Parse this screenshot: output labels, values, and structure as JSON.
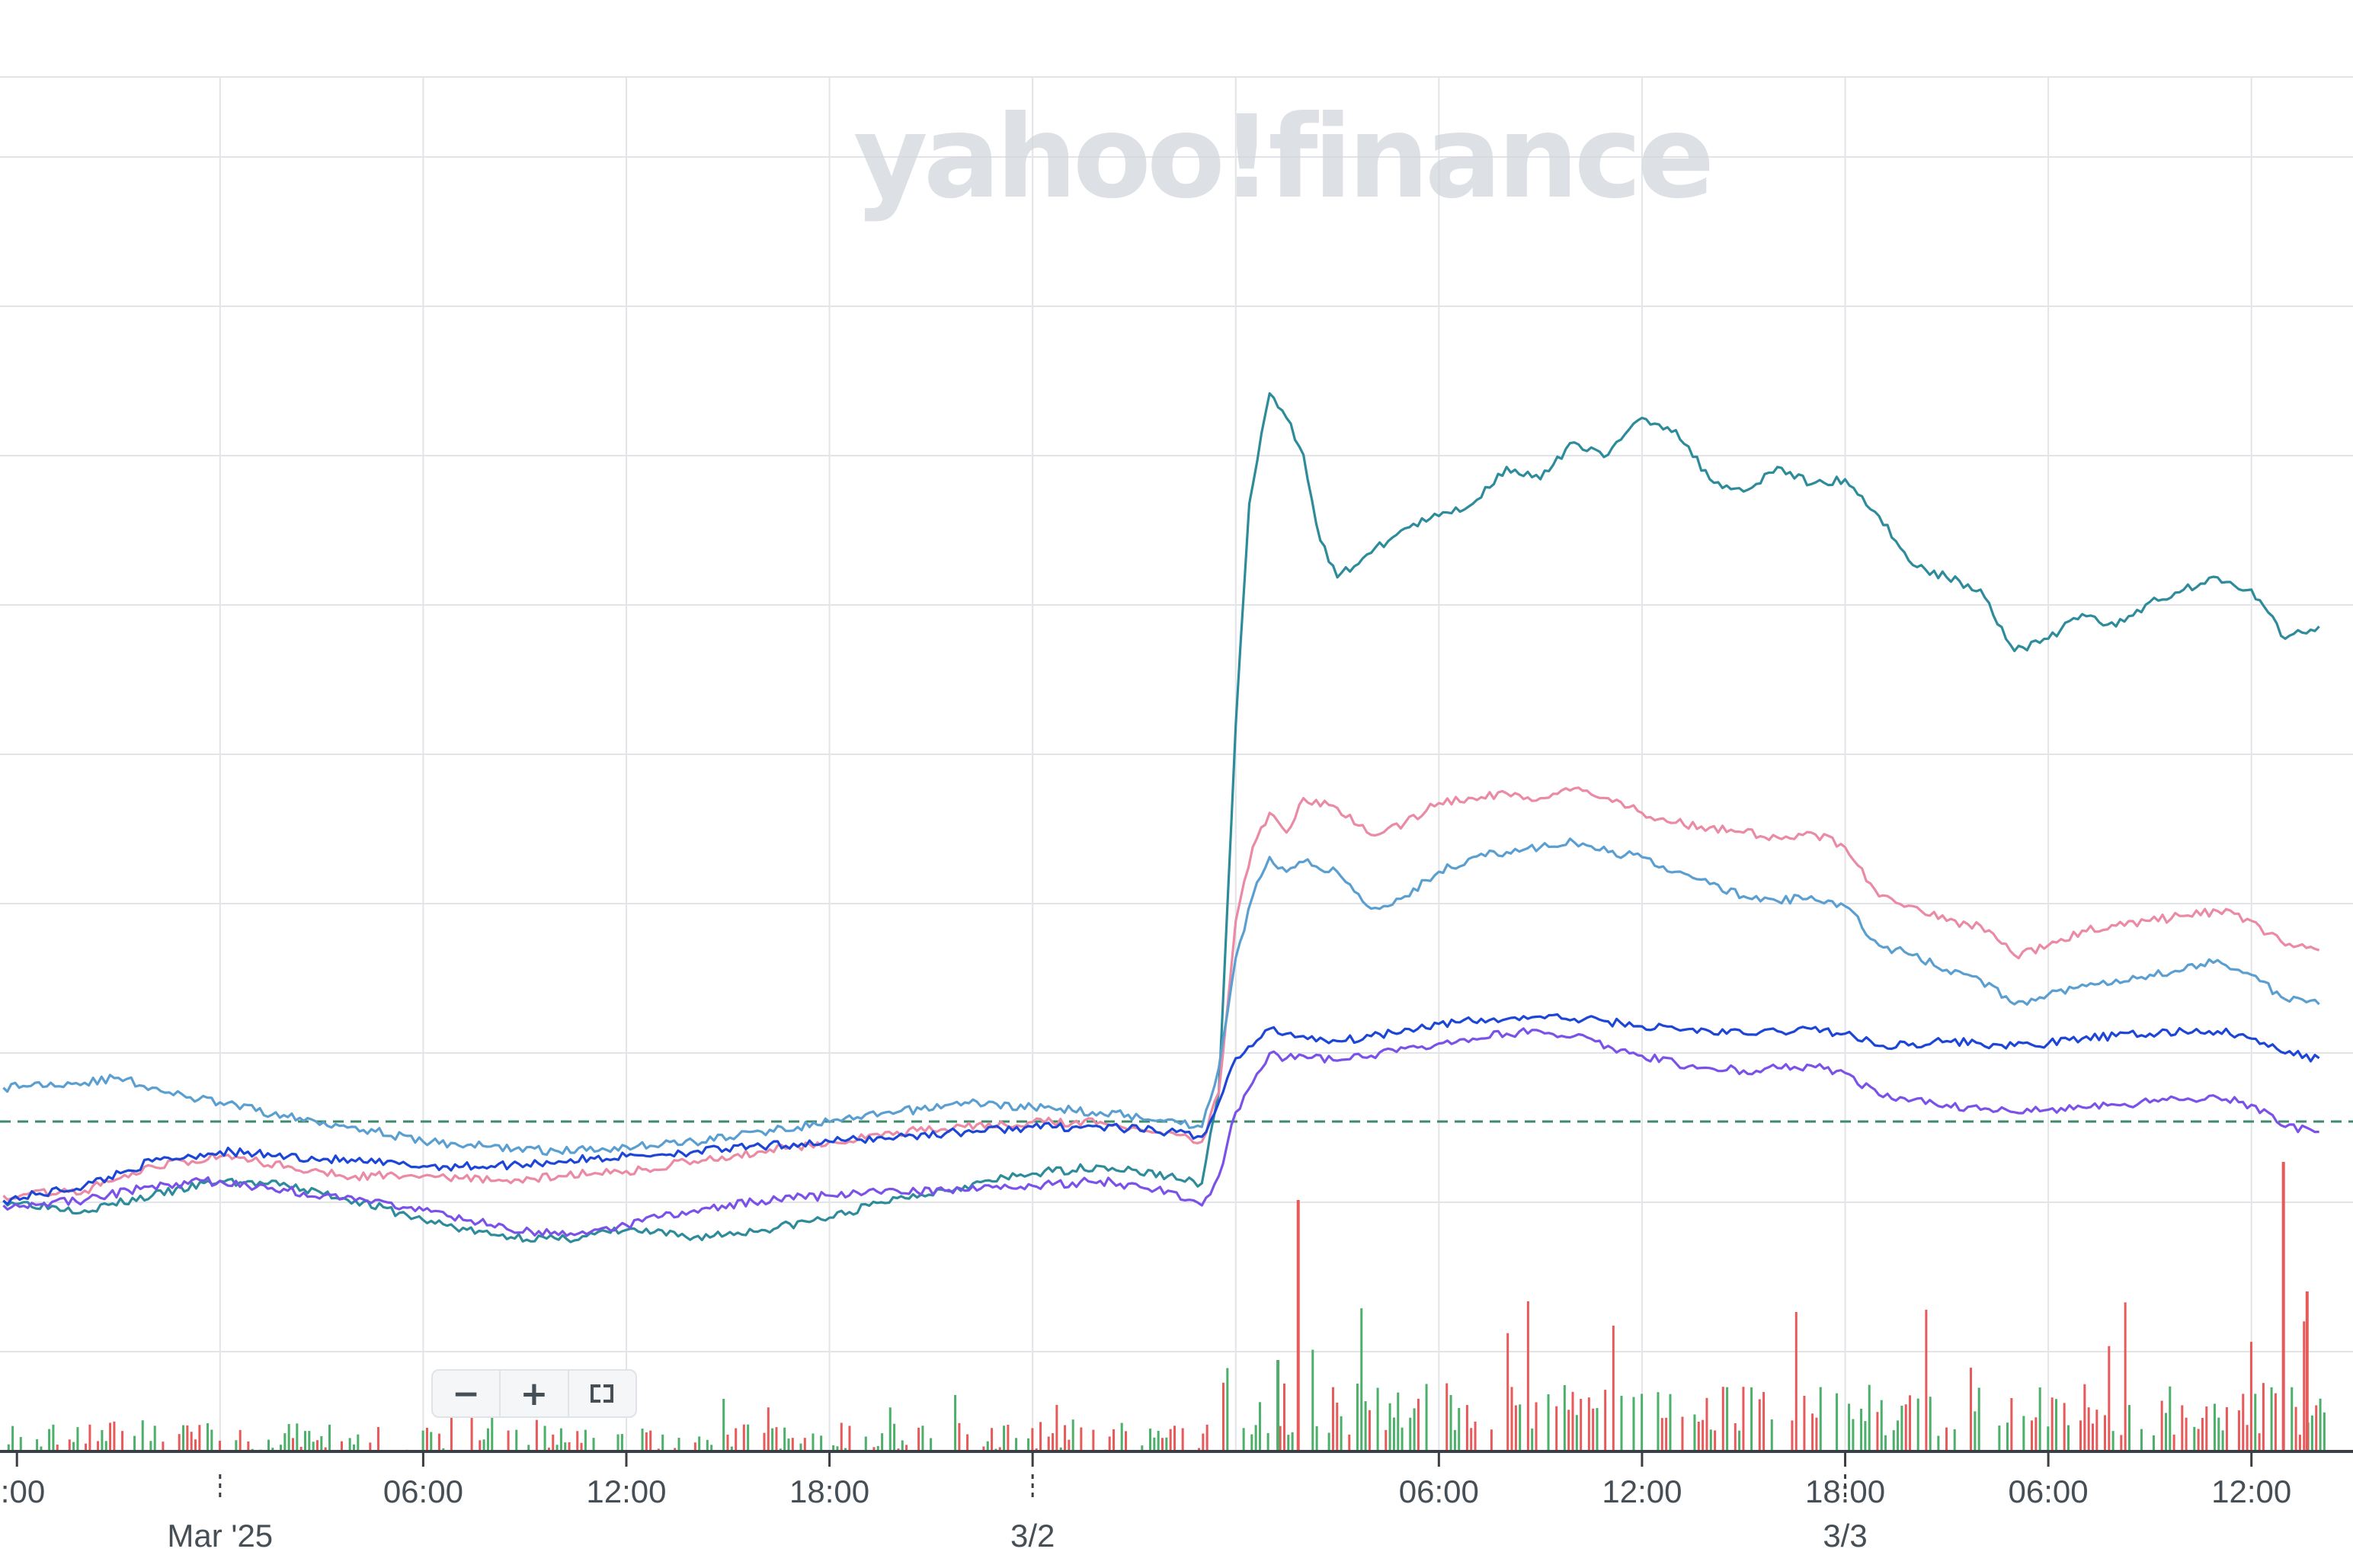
{
  "watermark": "yahoo!finance",
  "zoom_controls": {
    "zoom_out_label": "−",
    "zoom_in_label": "+",
    "fullscreen_icon": "fullscreen-icon"
  },
  "chart_data": {
    "type": "line",
    "title": "",
    "xlabel": "",
    "ylabel": "",
    "x_start": "2025-02-28 18:00",
    "x_end": "2025-03-03 12:00",
    "time_tick_labels": [
      ":00",
      "06:00",
      "12:00",
      "18:00",
      "06:00",
      "12:00",
      "18:00",
      "06:00",
      "12:00"
    ],
    "date_labels": [
      "Mar '25",
      "3/2",
      "3/3"
    ],
    "grid": true,
    "legend": "none",
    "y_axis_labels": "not shown",
    "baseline_reference": "dashed horizontal line",
    "colors": {
      "teal": "#2e8b9a",
      "pink": "#ea8aa5",
      "light_blue": "#5b9fd1",
      "blue": "#1d46d6",
      "purple": "#7b52e8",
      "baseline": "#3e8a6a",
      "volume_up": "#4caf6a",
      "volume_down": "#e85a5a"
    },
    "series": [
      {
        "color": "teal",
        "values": [
          [
            -0.4,
            0.6
          ],
          [
            2,
            0.2
          ],
          [
            4,
            0.8
          ],
          [
            6,
            1.4
          ],
          [
            8,
            1.2
          ],
          [
            10,
            0.6
          ],
          [
            12,
            -0.2
          ],
          [
            14,
            -0.8
          ],
          [
            16,
            -1.0
          ],
          [
            18,
            -0.6
          ],
          [
            20,
            -0.9
          ],
          [
            22,
            -0.6
          ],
          [
            24,
            -0.1
          ],
          [
            26,
            0.7
          ],
          [
            28,
            1.2
          ],
          [
            30,
            1.7
          ],
          [
            32,
            2.0
          ],
          [
            34,
            1.6
          ],
          [
            35,
            1.3
          ],
          [
            35.5,
            5.0
          ],
          [
            36,
            20.0
          ],
          [
            36.4,
            29.0
          ],
          [
            37,
            33.5
          ],
          [
            37.5,
            32.5
          ],
          [
            38,
            31.0
          ],
          [
            38.5,
            27.5
          ],
          [
            39,
            26.0
          ],
          [
            40,
            27.0
          ],
          [
            41,
            28.0
          ],
          [
            42,
            28.5
          ],
          [
            43,
            29.0
          ],
          [
            44,
            30.5
          ],
          [
            45,
            30.0
          ],
          [
            46,
            31.5
          ],
          [
            47,
            31.0
          ],
          [
            48,
            32.5
          ],
          [
            49,
            32.0
          ],
          [
            50,
            30.0
          ],
          [
            51,
            29.5
          ],
          [
            52,
            30.5
          ],
          [
            53,
            29.8
          ],
          [
            54,
            30.0
          ],
          [
            55,
            28.5
          ],
          [
            56,
            26.5
          ],
          [
            57,
            26.0
          ],
          [
            58,
            25.5
          ],
          [
            59,
            23.0
          ],
          [
            60,
            23.5
          ],
          [
            61,
            24.5
          ],
          [
            62,
            24.0
          ],
          [
            63,
            25.0
          ],
          [
            64,
            25.5
          ],
          [
            65,
            26.0
          ],
          [
            66,
            25.5
          ],
          [
            67,
            23.5
          ],
          [
            68,
            24.0
          ]
        ]
      },
      {
        "color": "pink",
        "values": [
          [
            -0.4,
            0.8
          ],
          [
            2,
            1.0
          ],
          [
            4,
            2.0
          ],
          [
            6,
            2.4
          ],
          [
            8,
            2.0
          ],
          [
            10,
            1.6
          ],
          [
            12,
            1.6
          ],
          [
            14,
            1.4
          ],
          [
            16,
            1.6
          ],
          [
            18,
            1.8
          ],
          [
            20,
            2.2
          ],
          [
            22,
            2.6
          ],
          [
            24,
            3.0
          ],
          [
            26,
            3.4
          ],
          [
            28,
            3.6
          ],
          [
            30,
            3.8
          ],
          [
            32,
            3.8
          ],
          [
            34,
            3.4
          ],
          [
            35,
            3.0
          ],
          [
            35.5,
            5.0
          ],
          [
            36,
            12.0
          ],
          [
            36.5,
            15.0
          ],
          [
            37,
            16.4
          ],
          [
            37.5,
            15.6
          ],
          [
            38,
            17.0
          ],
          [
            39,
            16.6
          ],
          [
            40,
            15.5
          ],
          [
            41,
            16.0
          ],
          [
            42,
            16.8
          ],
          [
            43,
            17.0
          ],
          [
            44,
            17.2
          ],
          [
            45,
            17.0
          ],
          [
            46,
            17.4
          ],
          [
            47,
            17.0
          ],
          [
            48,
            16.4
          ],
          [
            49,
            16.0
          ],
          [
            50,
            15.8
          ],
          [
            51,
            15.6
          ],
          [
            52,
            15.4
          ],
          [
            53,
            15.6
          ],
          [
            54,
            15.0
          ],
          [
            55,
            13.0
          ],
          [
            56,
            12.6
          ],
          [
            57,
            12.0
          ],
          [
            58,
            11.8
          ],
          [
            59,
            10.6
          ],
          [
            60,
            11.0
          ],
          [
            61,
            11.6
          ],
          [
            62,
            11.8
          ],
          [
            63,
            12.0
          ],
          [
            64,
            12.2
          ],
          [
            65,
            12.4
          ],
          [
            66,
            12.0
          ],
          [
            67,
            11.0
          ],
          [
            68,
            10.8
          ]
        ]
      },
      {
        "color": "light_blue",
        "values": [
          [
            -0.4,
            5.2
          ],
          [
            1,
            5.4
          ],
          [
            2,
            5.4
          ],
          [
            3,
            5.6
          ],
          [
            4,
            5.2
          ],
          [
            5,
            4.8
          ],
          [
            6,
            4.6
          ],
          [
            8,
            4.0
          ],
          [
            10,
            3.6
          ],
          [
            12,
            3.0
          ],
          [
            14,
            2.8
          ],
          [
            16,
            2.6
          ],
          [
            18,
            2.8
          ],
          [
            20,
            3.0
          ],
          [
            22,
            3.4
          ],
          [
            24,
            3.8
          ],
          [
            26,
            4.2
          ],
          [
            28,
            4.6
          ],
          [
            30,
            4.4
          ],
          [
            32,
            4.2
          ],
          [
            34,
            3.9
          ],
          [
            35,
            3.6
          ],
          [
            35.5,
            6.0
          ],
          [
            36,
            10.5
          ],
          [
            36.5,
            13.0
          ],
          [
            37,
            14.6
          ],
          [
            37.5,
            14.0
          ],
          [
            38,
            14.4
          ],
          [
            39,
            14.0
          ],
          [
            40,
            12.5
          ],
          [
            41,
            13.0
          ],
          [
            42,
            14.0
          ],
          [
            43,
            14.6
          ],
          [
            44,
            14.8
          ],
          [
            45,
            15.0
          ],
          [
            46,
            15.2
          ],
          [
            47,
            14.8
          ],
          [
            48,
            14.6
          ],
          [
            49,
            14.0
          ],
          [
            50,
            13.5
          ],
          [
            51,
            13.0
          ],
          [
            52,
            12.8
          ],
          [
            53,
            13.0
          ],
          [
            54,
            12.6
          ],
          [
            55,
            11.0
          ],
          [
            56,
            10.6
          ],
          [
            57,
            10.0
          ],
          [
            58,
            9.6
          ],
          [
            59,
            8.6
          ],
          [
            60,
            9.0
          ],
          [
            61,
            9.4
          ],
          [
            62,
            9.6
          ],
          [
            63,
            9.8
          ],
          [
            64,
            10.0
          ],
          [
            65,
            10.4
          ],
          [
            66,
            9.8
          ],
          [
            67,
            8.8
          ],
          [
            68,
            8.6
          ]
        ]
      },
      {
        "color": "blue",
        "values": [
          [
            -0.4,
            0.6
          ],
          [
            2,
            1.2
          ],
          [
            4,
            2.2
          ],
          [
            6,
            2.6
          ],
          [
            8,
            2.4
          ],
          [
            10,
            2.2
          ],
          [
            12,
            2.0
          ],
          [
            14,
            2.0
          ],
          [
            16,
            2.2
          ],
          [
            18,
            2.4
          ],
          [
            20,
            2.6
          ],
          [
            22,
            2.8
          ],
          [
            24,
            3.0
          ],
          [
            26,
            3.2
          ],
          [
            28,
            3.4
          ],
          [
            30,
            3.6
          ],
          [
            32,
            3.6
          ],
          [
            34,
            3.4
          ],
          [
            35,
            3.2
          ],
          [
            35.5,
            4.6
          ],
          [
            36,
            6.4
          ],
          [
            36.5,
            6.9
          ],
          [
            37,
            7.6
          ],
          [
            37.5,
            7.4
          ],
          [
            38,
            7.3
          ],
          [
            39,
            7.1
          ],
          [
            40,
            7.3
          ],
          [
            41,
            7.6
          ],
          [
            42,
            7.8
          ],
          [
            43,
            7.9
          ],
          [
            44,
            8.0
          ],
          [
            45,
            8.1
          ],
          [
            46,
            8.0
          ],
          [
            47,
            7.9
          ],
          [
            48,
            7.7
          ],
          [
            49,
            7.6
          ],
          [
            50,
            7.5
          ],
          [
            51,
            7.4
          ],
          [
            52,
            7.5
          ],
          [
            53,
            7.6
          ],
          [
            54,
            7.4
          ],
          [
            55,
            6.9
          ],
          [
            56,
            7.0
          ],
          [
            57,
            7.1
          ],
          [
            58,
            7.0
          ],
          [
            59,
            6.9
          ],
          [
            60,
            7.0
          ],
          [
            61,
            7.2
          ],
          [
            62,
            7.3
          ],
          [
            63,
            7.4
          ],
          [
            64,
            7.5
          ],
          [
            65,
            7.5
          ],
          [
            66,
            7.2
          ],
          [
            67,
            6.6
          ],
          [
            68,
            6.4
          ]
        ]
      },
      {
        "color": "purple",
        "values": [
          [
            -0.4,
            0.4
          ],
          [
            2,
            0.6
          ],
          [
            4,
            1.2
          ],
          [
            6,
            1.4
          ],
          [
            8,
            1.0
          ],
          [
            10,
            0.6
          ],
          [
            12,
            0.2
          ],
          [
            14,
            -0.4
          ],
          [
            16,
            -0.8
          ],
          [
            18,
            -0.4
          ],
          [
            20,
            0.2
          ],
          [
            22,
            0.6
          ],
          [
            24,
            0.8
          ],
          [
            26,
            1.0
          ],
          [
            28,
            1.0
          ],
          [
            30,
            1.2
          ],
          [
            32,
            1.4
          ],
          [
            34,
            1.0
          ],
          [
            35,
            0.4
          ],
          [
            35.5,
            1.6
          ],
          [
            36,
            4.2
          ],
          [
            36.5,
            5.4
          ],
          [
            37,
            6.6
          ],
          [
            37.5,
            6.4
          ],
          [
            38,
            6.5
          ],
          [
            39,
            6.3
          ],
          [
            40,
            6.5
          ],
          [
            41,
            6.8
          ],
          [
            42,
            7.0
          ],
          [
            43,
            7.2
          ],
          [
            44,
            7.4
          ],
          [
            45,
            7.5
          ],
          [
            46,
            7.3
          ],
          [
            47,
            6.9
          ],
          [
            48,
            6.5
          ],
          [
            49,
            6.2
          ],
          [
            50,
            6.0
          ],
          [
            51,
            5.9
          ],
          [
            52,
            6.0
          ],
          [
            53,
            6.1
          ],
          [
            54,
            5.8
          ],
          [
            55,
            4.9
          ],
          [
            56,
            4.7
          ],
          [
            57,
            4.5
          ],
          [
            58,
            4.3
          ],
          [
            59,
            4.2
          ],
          [
            60,
            4.3
          ],
          [
            61,
            4.4
          ],
          [
            62,
            4.5
          ],
          [
            63,
            4.6
          ],
          [
            64,
            4.7
          ],
          [
            65,
            4.8
          ],
          [
            66,
            4.5
          ],
          [
            67,
            3.6
          ],
          [
            68,
            3.4
          ]
        ]
      }
    ]
  }
}
